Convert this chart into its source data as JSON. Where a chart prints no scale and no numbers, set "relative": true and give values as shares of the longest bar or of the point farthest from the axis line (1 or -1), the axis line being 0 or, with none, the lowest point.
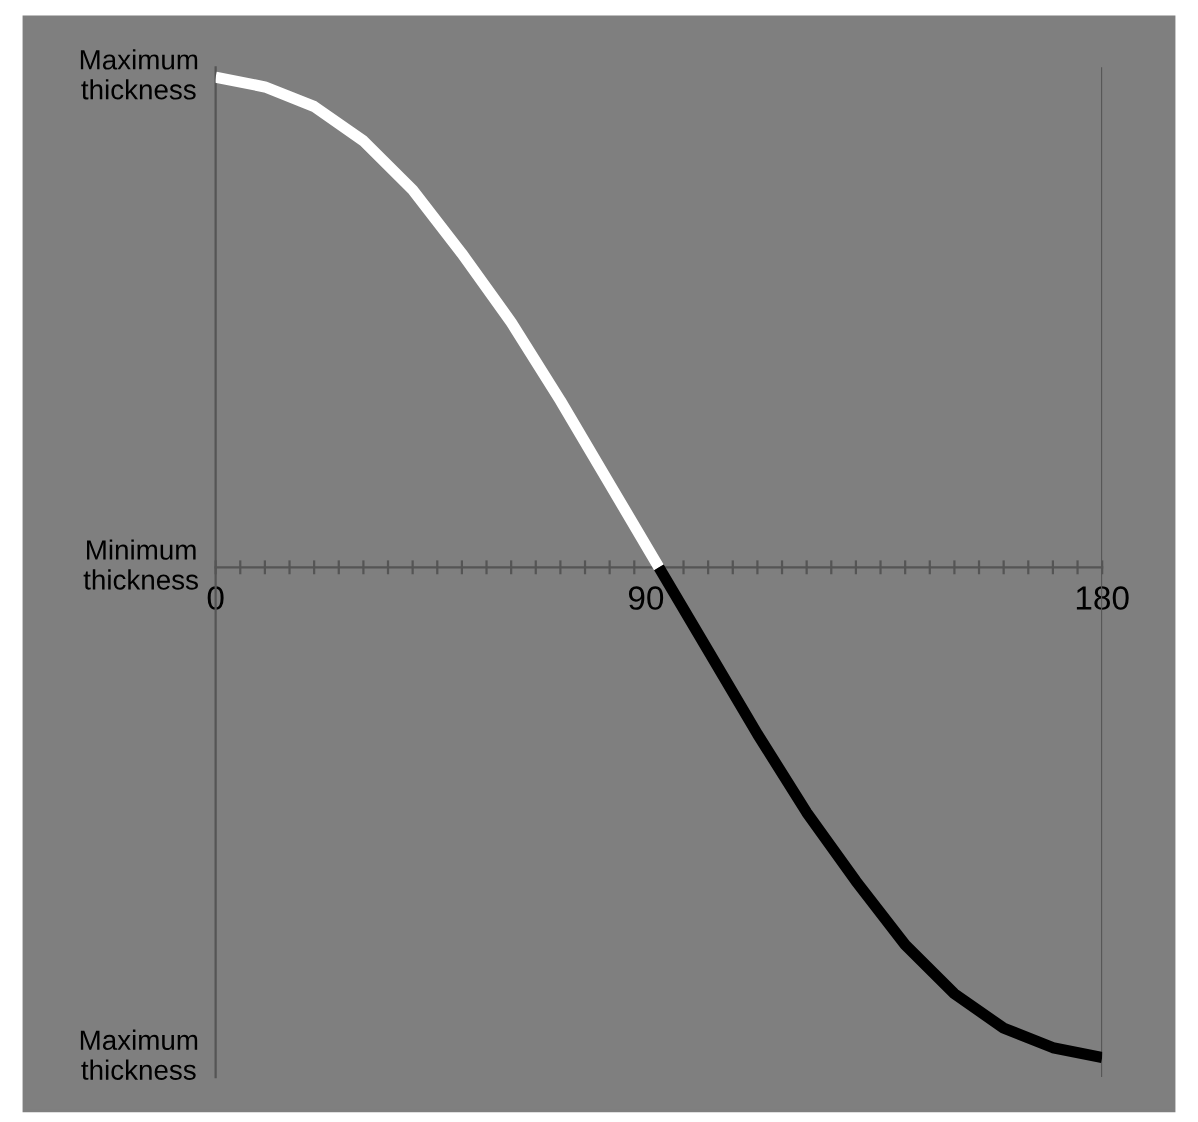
{
  "chart_data": {
    "type": "line",
    "relative": true,
    "xlim": [
      0,
      180
    ],
    "annotations": [
      "Maximum\nthickness",
      "Minimum\nthickness",
      "Maximum\nthickness"
    ],
    "xticks": [
      0,
      {
        "value": 5,
        "label": null
      },
      {
        "value": 10,
        "label": null
      },
      {
        "value": 15,
        "label": null
      },
      {
        "value": 20,
        "label": null
      },
      {
        "value": 25,
        "label": null
      },
      {
        "value": 30,
        "label": null
      },
      {
        "value": 35,
        "label": null
      },
      {
        "value": 40,
        "label": null
      },
      {
        "value": 45,
        "label": null
      },
      {
        "value": 50,
        "label": null
      },
      {
        "value": 55,
        "label": null
      },
      {
        "value": 60,
        "label": null
      },
      {
        "value": 65,
        "label": null
      },
      {
        "value": 70,
        "label": null
      },
      {
        "value": 75,
        "label": null
      },
      {
        "value": 80,
        "label": null
      },
      {
        "value": 85,
        "label": null
      },
      90,
      {
        "value": 95,
        "label": null
      },
      {
        "value": 100,
        "label": null
      },
      {
        "value": 105,
        "label": null
      },
      {
        "value": 110,
        "label": null
      },
      {
        "value": 115,
        "label": null
      },
      {
        "value": 120,
        "label": null
      },
      {
        "value": 125,
        "label": null
      },
      {
        "value": 130,
        "label": null
      },
      {
        "value": 135,
        "label": null
      },
      {
        "value": 140,
        "label": null
      },
      {
        "value": 145,
        "label": null
      },
      {
        "value": 150,
        "label": null
      },
      {
        "value": 155,
        "label": null
      },
      {
        "value": 160,
        "label": null
      },
      {
        "value": 165,
        "label": null
      },
      {
        "value": 170,
        "label": null
      },
      {
        "value": 175,
        "label": null
      },
      180
    ],
    "series": [
      {
        "color": "#ffffff",
        "x": [
          0,
          10,
          20,
          30,
          40,
          50,
          60,
          70,
          80,
          90
        ],
        "values": [
          1,
          0.98,
          0.94,
          0.87,
          0.77,
          0.64,
          0.5,
          0.34,
          0.17,
          0
        ]
      },
      {
        "color": "#000000",
        "x": [
          90,
          100,
          110,
          120,
          130,
          140,
          150,
          160,
          170,
          180
        ],
        "values": [
          0,
          -0.17,
          -0.34,
          -0.5,
          -0.64,
          -0.77,
          -0.87,
          -0.94,
          -0.98,
          -1
        ]
      }
    ],
    "ref_lines": [
      {
        "axis": "x",
        "value": 180,
        "color": "#555555"
      }
    ],
    "grid": false,
    "legend": false,
    "marker": "none",
    "line_style": "solid"
  }
}
